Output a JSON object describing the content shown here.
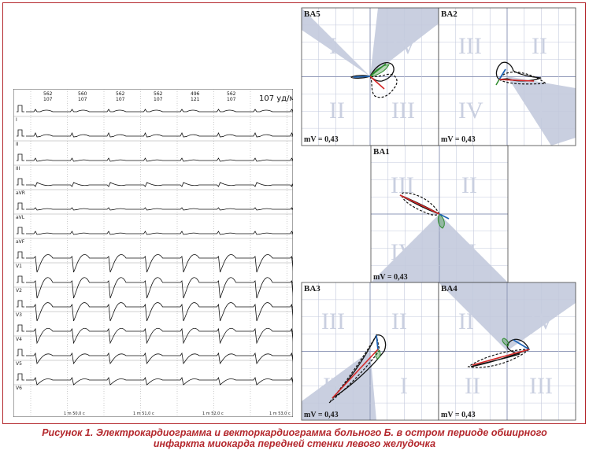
{
  "ecg": {
    "heart_rate": "107 уд/м",
    "intervals": [
      {
        "top": "562",
        "bottom": "107"
      },
      {
        "top": "560",
        "bottom": "107"
      },
      {
        "top": "562",
        "bottom": "107"
      },
      {
        "top": "562",
        "bottom": "107"
      },
      {
        "top": "496",
        "bottom": "121"
      },
      {
        "top": "562",
        "bottom": "107"
      }
    ],
    "leads": [
      "I",
      "II",
      "III",
      "aVR",
      "aVL",
      "aVF",
      "V1",
      "V2",
      "V3",
      "V4",
      "V5",
      "V6"
    ],
    "time_marks": [
      "1 m 50,0 c",
      "1 m 51,0 c",
      "1 m 52,0 c",
      "1 m 53,0 c"
    ]
  },
  "vcg": {
    "panels": [
      {
        "name": "BA5",
        "mv": "mV = 0,43",
        "quadrants": [
          "I",
          "IV",
          "II",
          "III"
        ]
      },
      {
        "name": "BA2",
        "mv": "mV = 0,43",
        "quadrants": [
          "III",
          "II",
          "IV",
          "I"
        ]
      },
      {
        "name": "BA1",
        "mv": "mV = 0,43",
        "quadrants": [
          "III",
          "II",
          "IV",
          "I"
        ]
      },
      {
        "name": "BA3",
        "mv": "mV = 0,43",
        "quadrants": [
          "III",
          "II",
          "IV",
          "I"
        ]
      },
      {
        "name": "BA4",
        "mv": "mV = 0,43",
        "quadrants": [
          "II",
          "IV",
          "II",
          "III"
        ]
      }
    ]
  },
  "caption": {
    "line1": "Рисунок 1. Электрокардиограмма и векторкардиограмма больного Б. в остром периоде обширного",
    "line2": "инфаркта миокарда передней стенки левого желудочка"
  },
  "colors": {
    "frame": "#b4282d",
    "grid": "#b8bfd8",
    "shade": "#c9cfe0",
    "red": "#d62828",
    "blue": "#1e63b5",
    "green": "#2e8b2e"
  }
}
